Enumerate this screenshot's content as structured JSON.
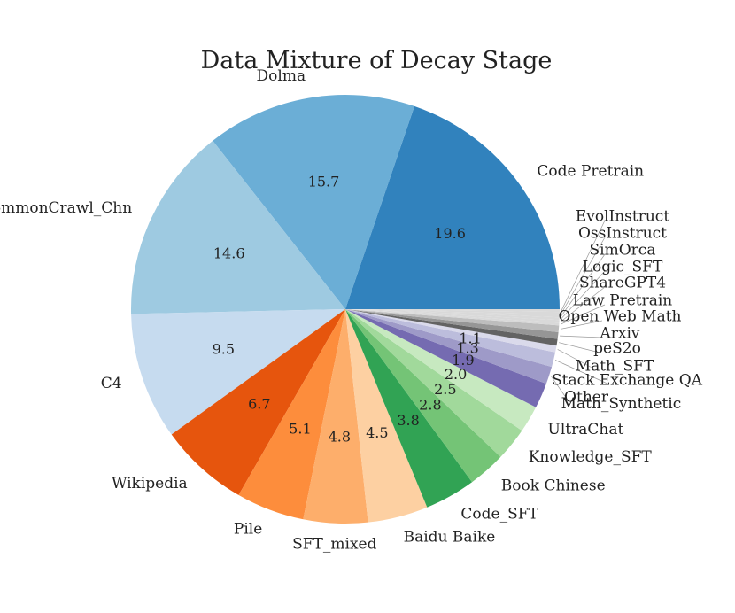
{
  "chart_data": {
    "type": "pie",
    "title": "Data Mixture of Decay Stage",
    "slices": [
      {
        "label": "Code Pretrain",
        "value": 19.6,
        "pct_label": "19.6",
        "color": "#3182bd"
      },
      {
        "label": "Dolma",
        "value": 15.7,
        "pct_label": "15.7",
        "color": "#6baed6"
      },
      {
        "label": "CommonCrawl_Chn",
        "value": 14.6,
        "pct_label": "14.6",
        "color": "#9ecae1"
      },
      {
        "label": "C4",
        "value": 9.5,
        "pct_label": "9.5",
        "color": "#c6dbef"
      },
      {
        "label": "Wikipedia",
        "value": 6.7,
        "pct_label": "6.7",
        "color": "#e6550d"
      },
      {
        "label": "Pile",
        "value": 5.1,
        "pct_label": "5.1",
        "color": "#fd8d3c"
      },
      {
        "label": "SFT_mixed",
        "value": 4.8,
        "pct_label": "4.8",
        "color": "#fdae6b"
      },
      {
        "label": "Baidu Baike",
        "value": 4.5,
        "pct_label": "4.5",
        "color": "#fdd0a2"
      },
      {
        "label": "Code_SFT",
        "value": 3.8,
        "pct_label": "3.8",
        "color": "#31a354"
      },
      {
        "label": "Book Chinese",
        "value": 2.8,
        "pct_label": "2.8",
        "color": "#74c476"
      },
      {
        "label": "Knowledge_SFT",
        "value": 2.5,
        "pct_label": "2.5",
        "color": "#a1d99b"
      },
      {
        "label": "UltraChat",
        "value": 2.0,
        "pct_label": "2.0",
        "color": "#c7e9c0"
      },
      {
        "label": "Math_Synthetic",
        "value": 1.9,
        "pct_label": "1.9",
        "color": "#756bb1"
      },
      {
        "label": "Other",
        "value": 1.3,
        "pct_label": "1.3",
        "color": "#9e9ac8"
      },
      {
        "label": "Stack Exchange QA",
        "value": 1.1,
        "pct_label": "1.1",
        "color": "#bcbddc"
      },
      {
        "label": "Math_SFT",
        "value": 0.5,
        "pct_label": "",
        "color": "#dadaeb"
      },
      {
        "label": "peS2o",
        "value": 0.5,
        "pct_label": "",
        "color": "#636363"
      },
      {
        "label": "Arxiv",
        "value": 0.5,
        "pct_label": "",
        "color": "#969696"
      },
      {
        "label": "Open Web Math",
        "value": 0.5,
        "pct_label": "",
        "color": "#bdbdbd"
      },
      {
        "label": "Law Pretrain",
        "value": 0.2,
        "pct_label": "",
        "color": "#d9d9d9"
      },
      {
        "label": "ShareGPT4",
        "value": 0.2,
        "pct_label": "",
        "color": "#d9d9d9"
      },
      {
        "label": "Logic_SFT",
        "value": 0.2,
        "pct_label": "",
        "color": "#d9d9d9"
      },
      {
        "label": "SimOrca",
        "value": 0.2,
        "pct_label": "",
        "color": "#d9d9d9"
      },
      {
        "label": "OssInstruct",
        "value": 0.2,
        "pct_label": "",
        "color": "#d9d9d9"
      },
      {
        "label": "EvolInstruct",
        "value": 0.2,
        "pct_label": "",
        "color": "#d9d9d9"
      }
    ]
  }
}
